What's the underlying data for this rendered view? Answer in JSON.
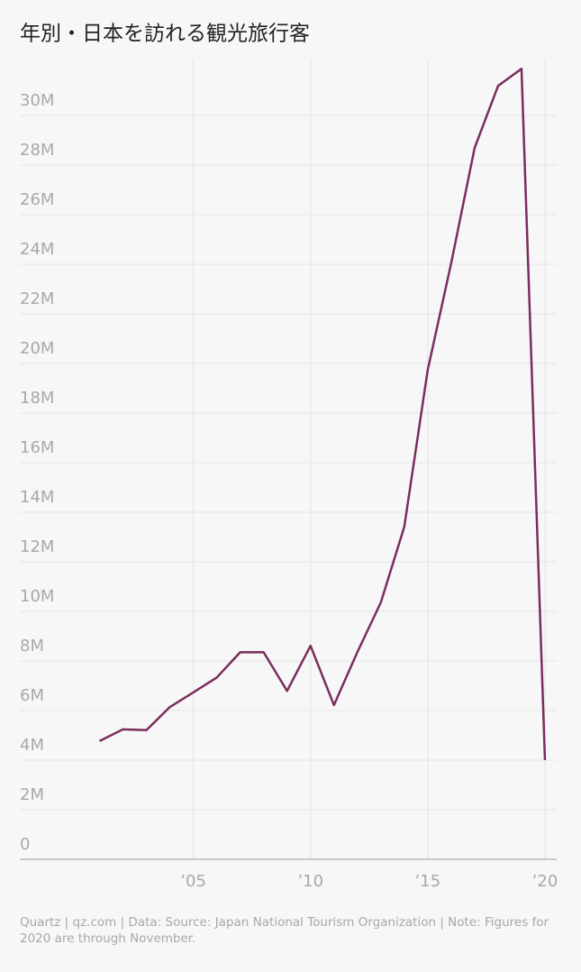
{
  "chart_data": {
    "type": "line",
    "title": "年別・日本を訪れる観光旅行客",
    "x": [
      2001,
      2002,
      2003,
      2004,
      2005,
      2006,
      2007,
      2008,
      2009,
      2010,
      2011,
      2012,
      2013,
      2014,
      2015,
      2016,
      2017,
      2018,
      2019,
      2020
    ],
    "values": [
      4770000,
      5240000,
      5210000,
      6140000,
      6730000,
      7330000,
      8350000,
      8350000,
      6790000,
      8610000,
      6220000,
      8360000,
      10360000,
      13410000,
      19740000,
      24040000,
      28690000,
      31190000,
      31880000,
      4000000
    ],
    "color": "#7b2d5e",
    "xlim": [
      1997.6,
      2020.5
    ],
    "xticks": [
      {
        "value": 2005,
        "label": "’05"
      },
      {
        "value": 2010,
        "label": "’10"
      },
      {
        "value": 2015,
        "label": "’15"
      },
      {
        "value": 2020,
        "label": "’20"
      }
    ],
    "ylim": [
      0,
      32000000
    ],
    "yticks": [
      0,
      {
        "value": 2000000,
        "label": "2M"
      },
      {
        "value": 4000000,
        "label": "4M"
      },
      {
        "value": 6000000,
        "label": "6M"
      },
      {
        "value": 8000000,
        "label": "8M"
      },
      {
        "value": 10000000,
        "label": "10M"
      },
      {
        "value": 12000000,
        "label": "12M"
      },
      {
        "value": 14000000,
        "label": "14M"
      },
      {
        "value": 16000000,
        "label": "16M"
      },
      {
        "value": 18000000,
        "label": "18M"
      },
      {
        "value": 20000000,
        "label": "20M"
      },
      {
        "value": 22000000,
        "label": "22M"
      },
      {
        "value": 24000000,
        "label": "24M"
      },
      {
        "value": 26000000,
        "label": "26M"
      },
      {
        "value": 28000000,
        "label": "28M"
      },
      {
        "value": 30000000,
        "label": "30M"
      }
    ],
    "grid": true,
    "footer": "Quartz | qz.com | Data: Source: Japan National Tourism Organization | Note: Figures for 2020 are through November."
  }
}
